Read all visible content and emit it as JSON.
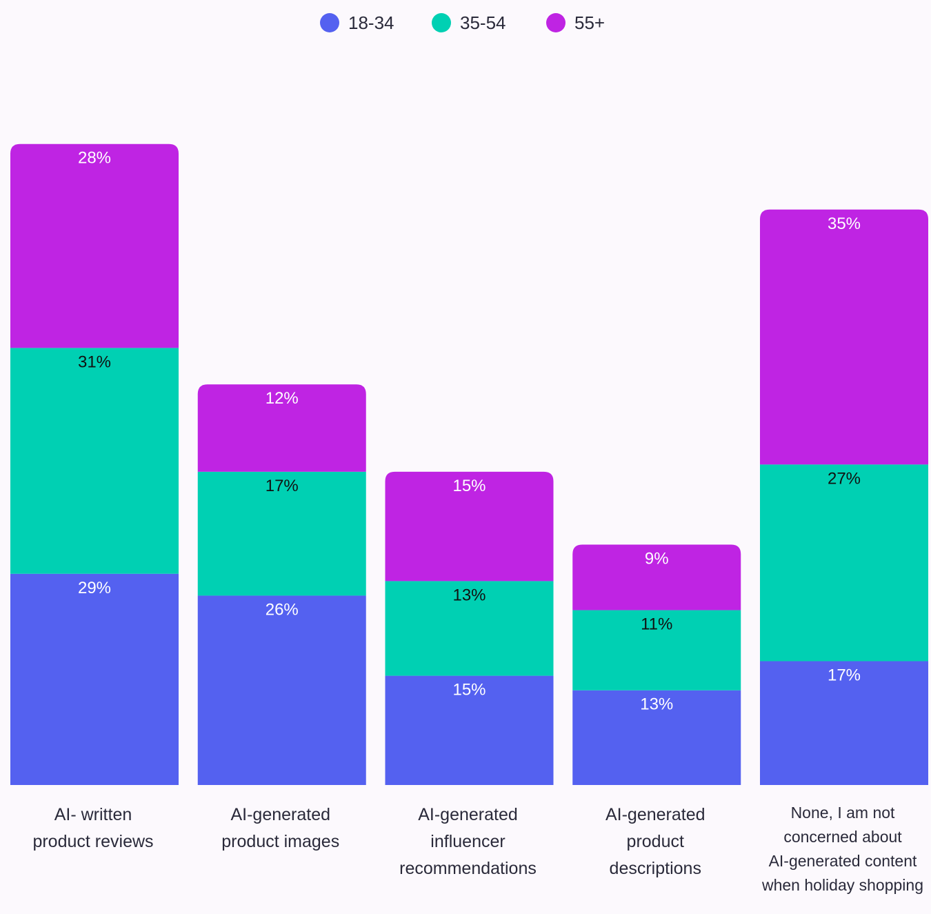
{
  "chart_data": {
    "type": "bar",
    "stacked": true,
    "categories": [
      [
        "AI- written",
        "product reviews"
      ],
      [
        "AI-generated",
        "product images"
      ],
      [
        "AI-generated",
        "influencer",
        "recommendations"
      ],
      [
        "AI-generated",
        "product",
        "descriptions"
      ],
      [
        "None, I am not",
        "concerned about",
        "AI-generated content",
        "when holiday shopping"
      ]
    ],
    "series": [
      {
        "name": "18-34",
        "color": "#5461f0",
        "label_color": "#ffffff",
        "values": [
          29,
          26,
          15,
          13,
          17
        ]
      },
      {
        "name": "35-54",
        "color": "#00d0b3",
        "label_color": "#111111",
        "values": [
          31,
          17,
          13,
          11,
          27
        ]
      },
      {
        "name": "55+",
        "color": "#bf24e3",
        "label_color": "#ffffff",
        "values": [
          28,
          12,
          15,
          9,
          35
        ]
      }
    ],
    "value_suffix": "%",
    "legend_position": "top-center",
    "grid": false,
    "title": "",
    "xlabel": "",
    "ylabel": ""
  }
}
